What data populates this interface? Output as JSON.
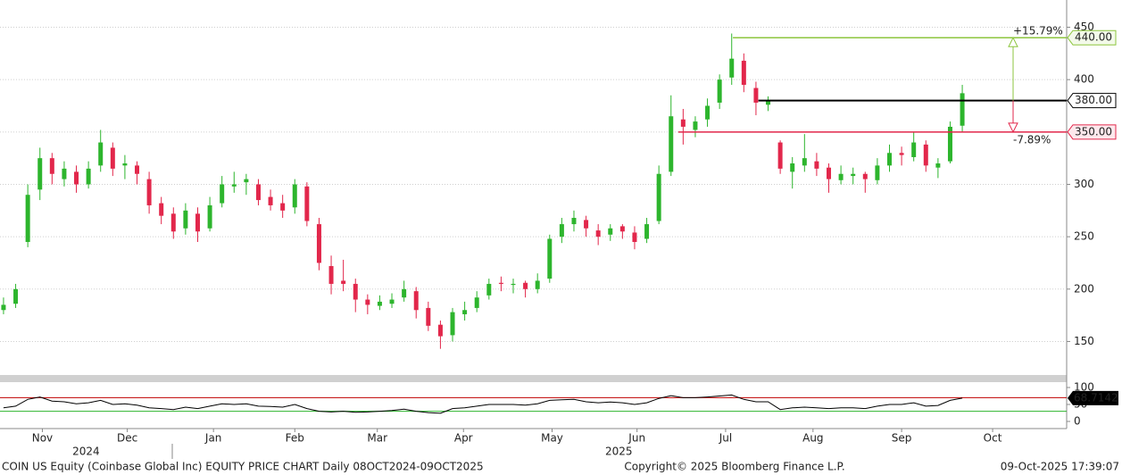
{
  "chart_data": {
    "type": "candlestick",
    "ohlc": [
      [
        180,
        192,
        176,
        185
      ],
      [
        186,
        205,
        182,
        200
      ],
      [
        245,
        300,
        240,
        290
      ],
      [
        295,
        335,
        285,
        325
      ],
      [
        325,
        330,
        300,
        310
      ],
      [
        305,
        322,
        298,
        315
      ],
      [
        312,
        318,
        292,
        300
      ],
      [
        300,
        322,
        296,
        315
      ],
      [
        318,
        352,
        312,
        340
      ],
      [
        335,
        340,
        308,
        315
      ],
      [
        318,
        328,
        305,
        320
      ],
      [
        318,
        322,
        300,
        310
      ],
      [
        305,
        312,
        272,
        280
      ],
      [
        282,
        288,
        262,
        270
      ],
      [
        272,
        278,
        248,
        255
      ],
      [
        258,
        282,
        252,
        275
      ],
      [
        272,
        278,
        245,
        255
      ],
      [
        258,
        288,
        255,
        280
      ],
      [
        282,
        308,
        278,
        300
      ],
      [
        298,
        312,
        292,
        300
      ],
      [
        302,
        310,
        290,
        305
      ],
      [
        300,
        305,
        280,
        285
      ],
      [
        288,
        295,
        275,
        280
      ],
      [
        282,
        290,
        268,
        275
      ],
      [
        278,
        305,
        272,
        300
      ],
      [
        298,
        302,
        260,
        265
      ],
      [
        262,
        268,
        218,
        225
      ],
      [
        222,
        232,
        195,
        205
      ],
      [
        208,
        228,
        198,
        205
      ],
      [
        205,
        210,
        178,
        190
      ],
      [
        190,
        195,
        176,
        185
      ],
      [
        184,
        194,
        180,
        188
      ],
      [
        186,
        196,
        182,
        190
      ],
      [
        192,
        208,
        188,
        200
      ],
      [
        198,
        202,
        172,
        180
      ],
      [
        182,
        188,
        160,
        165
      ],
      [
        166,
        170,
        143,
        155
      ],
      [
        156,
        182,
        150,
        178
      ],
      [
        176,
        188,
        170,
        180
      ],
      [
        182,
        198,
        178,
        192
      ],
      [
        194,
        210,
        190,
        205
      ],
      [
        206,
        212,
        198,
        205
      ],
      [
        204,
        210,
        196,
        205
      ],
      [
        206,
        208,
        192,
        200
      ],
      [
        200,
        215,
        196,
        208
      ],
      [
        210,
        252,
        206,
        248
      ],
      [
        250,
        268,
        244,
        262
      ],
      [
        262,
        275,
        255,
        268
      ],
      [
        266,
        270,
        250,
        258
      ],
      [
        256,
        262,
        242,
        250
      ],
      [
        252,
        262,
        246,
        258
      ],
      [
        260,
        262,
        248,
        255
      ],
      [
        254,
        260,
        238,
        245
      ],
      [
        248,
        268,
        244,
        262
      ],
      [
        265,
        318,
        262,
        310
      ],
      [
        312,
        385,
        308,
        365
      ],
      [
        362,
        372,
        338,
        355
      ],
      [
        352,
        365,
        345,
        360
      ],
      [
        362,
        382,
        355,
        375
      ],
      [
        378,
        405,
        372,
        400
      ],
      [
        402,
        444,
        395,
        420
      ],
      [
        418,
        425,
        388,
        395
      ],
      [
        392,
        398,
        366,
        378
      ],
      [
        376,
        384,
        370,
        380
      ],
      [
        340,
        342,
        310,
        315
      ],
      [
        312,
        326,
        296,
        320
      ],
      [
        318,
        348,
        312,
        325
      ],
      [
        322,
        330,
        308,
        315
      ],
      [
        316,
        320,
        292,
        305
      ],
      [
        304,
        318,
        300,
        310
      ],
      [
        308,
        316,
        300,
        310
      ],
      [
        310,
        312,
        292,
        305
      ],
      [
        304,
        325,
        300,
        318
      ],
      [
        318,
        338,
        312,
        330
      ],
      [
        330,
        336,
        318,
        328
      ],
      [
        326,
        350,
        322,
        340
      ],
      [
        338,
        342,
        312,
        318
      ],
      [
        316,
        325,
        306,
        320
      ],
      [
        322,
        360,
        320,
        355
      ],
      [
        356,
        395,
        350,
        387
      ]
    ],
    "up_color": "#2db52d",
    "down_color": "#e2274b",
    "xlim": [
      -0.29,
      87.6
    ],
    "ylim": [
      118,
      476
    ],
    "yticks": [
      150,
      200,
      250,
      300,
      350,
      400,
      450
    ],
    "xticks": [
      {
        "value": 3.2,
        "label": "Nov"
      },
      {
        "value": 10.2,
        "label": "Dec"
      },
      {
        "value": 17.3,
        "label": "Jan"
      },
      {
        "value": 24.0,
        "label": "Feb"
      },
      {
        "value": 30.8,
        "label": "Mar"
      },
      {
        "value": 37.9,
        "label": "Apr"
      },
      {
        "value": 45.2,
        "label": "May"
      },
      {
        "value": 52.2,
        "label": "Jun"
      },
      {
        "value": 59.5,
        "label": "Jul"
      },
      {
        "value": 66.7,
        "label": "Aug"
      },
      {
        "value": 74.0,
        "label": "Sep"
      },
      {
        "value": 81.5,
        "label": "Oct"
      }
    ],
    "years": [
      {
        "value": 6.8,
        "label": "2024"
      },
      {
        "value": 50.7,
        "label": "2025"
      }
    ],
    "grid": true,
    "levels": [
      {
        "value": 440,
        "label": "440.00",
        "start": 60.1,
        "color": "#8dc63f",
        "change": "+15.79%"
      },
      {
        "value": 380,
        "label": "380.00",
        "start": 62.2,
        "color": "#000000"
      },
      {
        "value": 350,
        "label": "350.00",
        "start": 55.6,
        "color": "#e2274b",
        "change": "-7.89%"
      }
    ],
    "rsi": {
      "values": [
        40,
        45,
        65,
        72,
        60,
        58,
        52,
        55,
        62,
        50,
        52,
        48,
        40,
        38,
        35,
        42,
        38,
        45,
        52,
        50,
        52,
        45,
        44,
        42,
        50,
        38,
        30,
        28,
        30,
        27,
        28,
        30,
        32,
        36,
        30,
        26,
        24,
        38,
        40,
        45,
        50,
        50,
        50,
        48,
        52,
        62,
        64,
        65,
        58,
        55,
        57,
        55,
        50,
        55,
        68,
        76,
        70,
        70,
        72,
        75,
        78,
        65,
        58,
        58,
        35,
        40,
        42,
        40,
        38,
        40,
        40,
        38,
        45,
        50,
        50,
        55,
        45,
        47,
        62,
        68.7142
      ],
      "color": "#000000",
      "ylim": [
        0,
        100
      ],
      "yticks": [
        0,
        50,
        100
      ],
      "upper": 70,
      "lower": 30
    },
    "footer": {
      "description": "COIN US Equity (Coinbase Global Inc) EQUITY PRICE CHART Daily 08OCT2024-09OCT2025",
      "copyright": "Copyright© 2025 Bloomberg Finance L.P.",
      "timestamp": "09-Oct-2025 17:39:07"
    }
  }
}
